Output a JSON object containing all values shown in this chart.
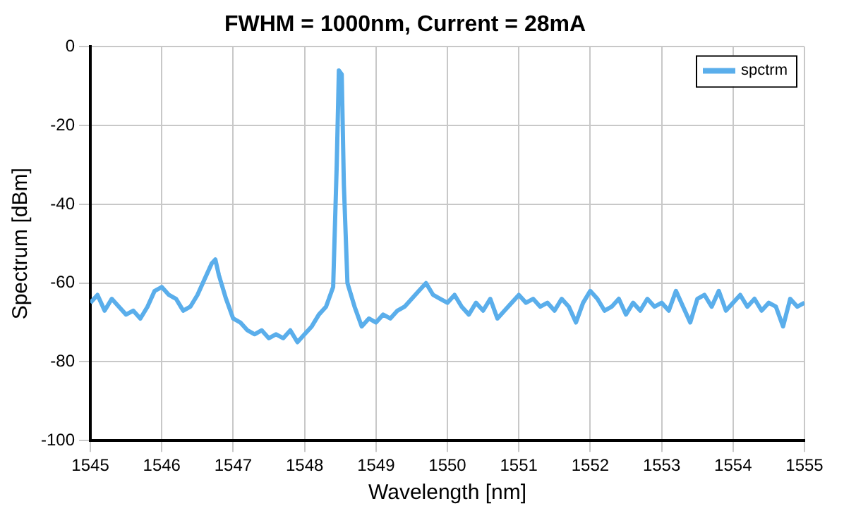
{
  "chart_data": {
    "type": "line",
    "title": "FWHM = 1000nm, Current = 28mA",
    "xlabel": "Wavelength [nm]",
    "ylabel": "Spectrum [dBm]",
    "x": [
      1545.0,
      1545.1,
      1545.2,
      1545.3,
      1545.4,
      1545.5,
      1545.6,
      1545.7,
      1545.8,
      1545.9,
      1546.0,
      1546.1,
      1546.2,
      1546.3,
      1546.4,
      1546.5,
      1546.6,
      1546.7,
      1546.75,
      1546.8,
      1546.9,
      1547.0,
      1547.1,
      1547.2,
      1547.3,
      1547.4,
      1547.5,
      1547.6,
      1547.7,
      1547.8,
      1547.9,
      1548.0,
      1548.1,
      1548.2,
      1548.3,
      1548.4,
      1548.45,
      1548.48,
      1548.52,
      1548.55,
      1548.6,
      1548.7,
      1548.8,
      1548.9,
      1549.0,
      1549.1,
      1549.2,
      1549.3,
      1549.4,
      1549.5,
      1549.6,
      1549.7,
      1549.8,
      1549.9,
      1550.0,
      1550.1,
      1550.2,
      1550.3,
      1550.4,
      1550.5,
      1550.6,
      1550.7,
      1550.8,
      1550.9,
      1551.0,
      1551.1,
      1551.2,
      1551.3,
      1551.4,
      1551.5,
      1551.6,
      1551.7,
      1551.8,
      1551.9,
      1552.0,
      1552.1,
      1552.2,
      1552.3,
      1552.4,
      1552.5,
      1552.6,
      1552.7,
      1552.8,
      1552.9,
      1553.0,
      1553.1,
      1553.2,
      1553.3,
      1553.4,
      1553.5,
      1553.6,
      1553.7,
      1553.8,
      1553.9,
      1554.0,
      1554.1,
      1554.2,
      1554.3,
      1554.4,
      1554.5,
      1554.6,
      1554.7,
      1554.8,
      1554.9,
      1555.0
    ],
    "series": [
      {
        "name": "spctrm",
        "color": "#5aaeeb",
        "values": [
          -65,
          -63,
          -67,
          -64,
          -66,
          -68,
          -67,
          -69,
          -66,
          -62,
          -61,
          -63,
          -64,
          -67,
          -66,
          -63,
          -59,
          -55,
          -54,
          -58,
          -64,
          -69,
          -70,
          -72,
          -73,
          -72,
          -74,
          -73,
          -74,
          -72,
          -75,
          -73,
          -71,
          -68,
          -66,
          -61,
          -30,
          -6,
          -7,
          -35,
          -60,
          -66,
          -71,
          -69,
          -70,
          -68,
          -69,
          -67,
          -66,
          -64,
          -62,
          -60,
          -63,
          -64,
          -65,
          -63,
          -66,
          -68,
          -65,
          -67,
          -64,
          -69,
          -67,
          -65,
          -63,
          -65,
          -64,
          -66,
          -65,
          -67,
          -64,
          -66,
          -70,
          -65,
          -62,
          -64,
          -67,
          -66,
          -64,
          -68,
          -65,
          -67,
          -64,
          -66,
          -65,
          -67,
          -62,
          -66,
          -70,
          -64,
          -63,
          -66,
          -62,
          -67,
          -65,
          -63,
          -66,
          -64,
          -67,
          -65,
          -66,
          -71,
          -64,
          -66,
          -65
        ]
      }
    ],
    "xlim": [
      1545,
      1555
    ],
    "xticks": [
      1545,
      1546,
      1547,
      1548,
      1549,
      1550,
      1551,
      1552,
      1553,
      1554,
      1555
    ],
    "ylim": [
      -100,
      0
    ],
    "yticks": [
      -100,
      -80,
      -60,
      -40,
      -20,
      0
    ],
    "grid": true,
    "legend": "top right",
    "marker": "none",
    "line_style": "solid"
  }
}
